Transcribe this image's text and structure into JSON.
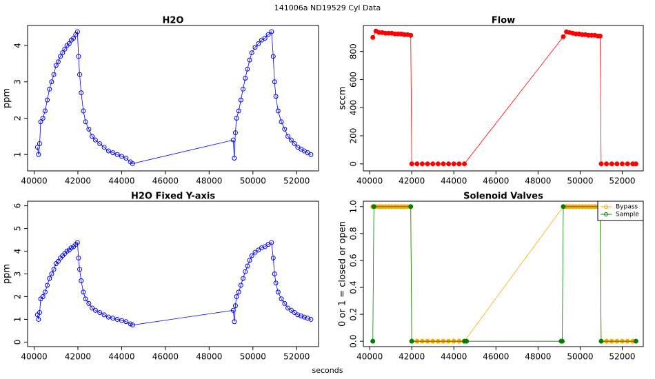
{
  "title": "141006a    ND19529    Cyl Data",
  "xlabel": "seconds",
  "chart_data": [
    {
      "type": "line",
      "title": "H2O",
      "ylabel": "ppm",
      "color": "#0000ff",
      "marker": "open",
      "x": [
        40150,
        40200,
        40250,
        40300,
        40400,
        40500,
        40600,
        40700,
        40800,
        40900,
        41000,
        41100,
        41200,
        41300,
        41400,
        41500,
        41600,
        41700,
        41800,
        41900,
        41980,
        42030,
        42080,
        42150,
        42250,
        42350,
        42500,
        42650,
        42800,
        43000,
        43200,
        43400,
        43600,
        43800,
        44000,
        44200,
        44400,
        44500,
        49100,
        49150,
        49200,
        49250,
        49350,
        49450,
        49550,
        49650,
        49750,
        49850,
        49950,
        50100,
        50250,
        50400,
        50550,
        50700,
        50850,
        50930,
        50990,
        51050,
        51150,
        51300,
        51450,
        51600,
        51750,
        51900,
        52050,
        52200,
        52350,
        52500,
        52650
      ],
      "values": [
        1.2,
        1.0,
        1.3,
        1.9,
        2.0,
        2.2,
        2.5,
        2.8,
        3.0,
        3.2,
        3.45,
        3.55,
        3.7,
        3.8,
        3.9,
        4.0,
        4.05,
        4.15,
        4.2,
        4.3,
        4.38,
        3.7,
        3.2,
        2.7,
        2.2,
        1.9,
        1.7,
        1.5,
        1.4,
        1.3,
        1.2,
        1.1,
        1.05,
        1.0,
        0.95,
        0.9,
        0.8,
        0.75,
        1.4,
        0.9,
        1.6,
        2.0,
        2.2,
        2.5,
        2.8,
        3.1,
        3.35,
        3.6,
        3.8,
        3.95,
        4.05,
        4.15,
        4.2,
        4.3,
        4.38,
        3.7,
        3.0,
        2.6,
        2.2,
        1.9,
        1.7,
        1.5,
        1.4,
        1.3,
        1.2,
        1.15,
        1.1,
        1.05,
        1.0
      ],
      "xlim": [
        39700,
        53000
      ],
      "xticks": [
        40000,
        42000,
        44000,
        46000,
        48000,
        50000,
        52000
      ],
      "ylim": [
        0.55,
        4.55
      ],
      "yticks": [
        1,
        2,
        3,
        4
      ]
    },
    {
      "type": "line",
      "title": "Flow",
      "ylabel": "sccm",
      "color": "#ff0000",
      "marker": "filled",
      "x": [
        40150,
        40300,
        40450,
        40600,
        40750,
        40900,
        41050,
        41200,
        41350,
        41500,
        41650,
        41800,
        41950,
        42000,
        42250,
        42500,
        42750,
        43000,
        43250,
        43500,
        43750,
        44000,
        44250,
        44500,
        49200,
        49350,
        49500,
        49650,
        49800,
        49950,
        50100,
        50250,
        50400,
        50550,
        50700,
        50850,
        50950,
        51000,
        51250,
        51500,
        51750,
        52000,
        52250,
        52500,
        52650
      ],
      "values": [
        900,
        945,
        935,
        935,
        930,
        930,
        930,
        925,
        925,
        925,
        920,
        920,
        915,
        0,
        0,
        0,
        0,
        0,
        0,
        0,
        0,
        0,
        0,
        0,
        905,
        940,
        935,
        930,
        925,
        925,
        920,
        920,
        915,
        915,
        915,
        910,
        910,
        0,
        0,
        0,
        0,
        0,
        0,
        0,
        0
      ],
      "xlim": [
        39700,
        53000
      ],
      "xticks": [
        40000,
        42000,
        44000,
        46000,
        48000,
        50000,
        52000
      ],
      "ylim": [
        -50,
        985
      ],
      "yticks": [
        0,
        200,
        400,
        600,
        800
      ]
    },
    {
      "type": "line",
      "title": "H2O Fixed Y-axis",
      "ylabel": "ppm",
      "color": "#0000ff",
      "marker": "open",
      "x": [
        40150,
        40200,
        40250,
        40300,
        40400,
        40500,
        40600,
        40700,
        40800,
        40900,
        41000,
        41100,
        41200,
        41300,
        41400,
        41500,
        41600,
        41700,
        41800,
        41900,
        41980,
        42030,
        42080,
        42150,
        42250,
        42350,
        42500,
        42650,
        42800,
        43000,
        43200,
        43400,
        43600,
        43800,
        44000,
        44200,
        44400,
        44500,
        49100,
        49150,
        49200,
        49250,
        49350,
        49450,
        49550,
        49650,
        49750,
        49850,
        49950,
        50100,
        50250,
        50400,
        50550,
        50700,
        50850,
        50930,
        50990,
        51050,
        51150,
        51300,
        51450,
        51600,
        51750,
        51900,
        52050,
        52200,
        52350,
        52500,
        52650
      ],
      "values": [
        1.2,
        1.0,
        1.3,
        1.9,
        2.0,
        2.2,
        2.5,
        2.8,
        3.0,
        3.2,
        3.45,
        3.55,
        3.7,
        3.8,
        3.9,
        4.0,
        4.05,
        4.15,
        4.2,
        4.3,
        4.38,
        3.7,
        3.2,
        2.7,
        2.2,
        1.9,
        1.7,
        1.5,
        1.4,
        1.3,
        1.2,
        1.1,
        1.05,
        1.0,
        0.95,
        0.9,
        0.8,
        0.75,
        1.4,
        0.9,
        1.6,
        2.0,
        2.2,
        2.5,
        2.8,
        3.1,
        3.35,
        3.6,
        3.8,
        3.95,
        4.05,
        4.15,
        4.2,
        4.3,
        4.38,
        3.7,
        3.0,
        2.6,
        2.2,
        1.9,
        1.7,
        1.5,
        1.4,
        1.3,
        1.2,
        1.15,
        1.1,
        1.05,
        1.0
      ],
      "xlim": [
        39700,
        53000
      ],
      "xticks": [
        40000,
        42000,
        44000,
        46000,
        48000,
        50000,
        52000
      ],
      "ylim": [
        -0.2,
        6.2
      ],
      "yticks": [
        0,
        1,
        2,
        3,
        4,
        5,
        6
      ]
    },
    {
      "type": "line",
      "title": "Solenoid Valves",
      "ylabel": "0 or 1 = closed or open",
      "marker": "filled",
      "legend": "topright",
      "series": [
        {
          "name": "Bypass",
          "color": "#ffa500",
          "x": [
            40150,
            40300,
            40450,
            40600,
            40750,
            40900,
            41050,
            41200,
            41350,
            41500,
            41650,
            41800,
            41950,
            42000,
            42250,
            42500,
            42750,
            43000,
            43250,
            43500,
            43750,
            44000,
            44250,
            44500,
            49200,
            49350,
            49500,
            49650,
            49800,
            49950,
            50100,
            50250,
            50400,
            50550,
            50700,
            50850,
            50950,
            51000,
            51250,
            51500,
            51750,
            52000,
            52250,
            52500,
            52650
          ],
          "values": [
            1,
            1,
            1,
            1,
            1,
            1,
            1,
            1,
            1,
            1,
            1,
            1,
            1,
            0,
            0,
            0,
            0,
            0,
            0,
            0,
            0,
            0,
            0,
            0,
            1,
            1,
            1,
            1,
            1,
            1,
            1,
            1,
            1,
            1,
            1,
            1,
            1,
            0,
            0,
            0,
            0,
            0,
            0,
            0,
            0
          ]
        },
        {
          "name": "Sample",
          "color": "#008000",
          "x": [
            40150,
            40200,
            41950,
            42000,
            44500,
            44600,
            49100,
            49150,
            49200,
            50950,
            51000,
            52650
          ],
          "values": [
            0,
            1,
            1,
            0,
            0,
            0,
            0,
            0,
            1,
            1,
            0,
            0
          ]
        }
      ],
      "xlim": [
        39700,
        53000
      ],
      "xticks": [
        40000,
        42000,
        44000,
        46000,
        48000,
        50000,
        52000
      ],
      "ylim": [
        -0.04,
        1.04
      ],
      "yticks": [
        {
          "value": 0,
          "label": "0.0"
        },
        0.2,
        0.4,
        0.6,
        0.8,
        {
          "value": 1,
          "label": "1.0"
        }
      ]
    }
  ]
}
